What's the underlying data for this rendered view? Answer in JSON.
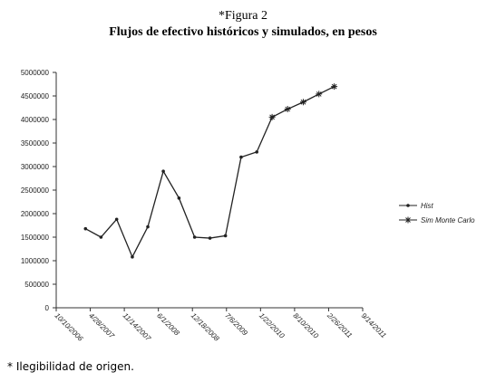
{
  "header": {
    "label": "*Figura 2"
  },
  "chart_data": {
    "type": "line",
    "title": "Flujos de efectivo históricos y simulados, en pesos",
    "series": [
      {
        "name": "Hist",
        "color": "#222222",
        "marker": "dot",
        "x": [
          "3/31/2007",
          "6/30/2007",
          "9/30/2007",
          "12/31/2007",
          "3/31/2008",
          "6/30/2008",
          "9/30/2008",
          "12/31/2008",
          "3/31/2009",
          "6/30/2009",
          "9/30/2009",
          "12/31/2009",
          "3/31/2010"
        ],
        "values": [
          1680000,
          1500000,
          1880000,
          1080000,
          1720000,
          2900000,
          2330000,
          1500000,
          1480000,
          1530000,
          3200000,
          3310000,
          4050000
        ]
      },
      {
        "name": "Sim Monte Carlo",
        "color": "#222222",
        "marker": "asterisk",
        "x": [
          "3/31/2010",
          "6/30/2010",
          "9/30/2010",
          "12/31/2010",
          "3/31/2011"
        ],
        "values": [
          4050000,
          4220000,
          4370000,
          4540000,
          4700000
        ]
      }
    ],
    "xlim": [
      "10/10/2006",
      "9/14/2011"
    ],
    "xticks": [
      "10/10/2006",
      "4/28/2007",
      "11/14/2007",
      "6/1/2008",
      "12/18/2008",
      "7/6/2009",
      "1/22/2010",
      "8/10/2010",
      "2/26/2011",
      "9/14/2011"
    ],
    "ylim": [
      0,
      5000000
    ],
    "yticks": [
      0,
      500000,
      1000000,
      1500000,
      2000000,
      2500000,
      3000000,
      3500000,
      4000000,
      4500000,
      5000000
    ],
    "legend": "right"
  },
  "footnote": "* Ilegibilidad de origen."
}
